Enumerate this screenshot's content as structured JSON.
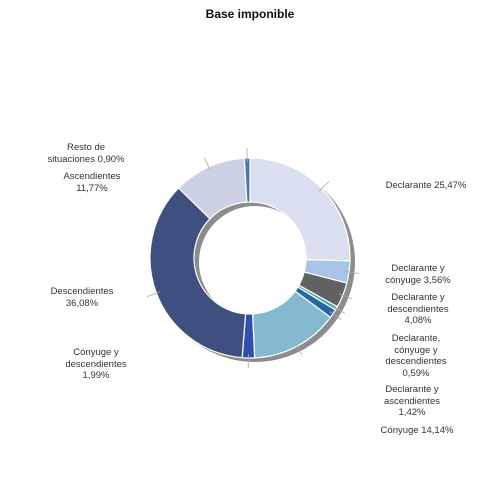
{
  "chart_data": {
    "type": "pie",
    "title": "Base imponible",
    "slices": [
      {
        "label": "Declarante",
        "value": 25.47,
        "display": "Declarante 25,47%",
        "color": "#dbe0f0"
      },
      {
        "label": "Declarante y cónyuge",
        "value": 3.56,
        "display": "Declarante y\ncónyuge 3,56%",
        "color": "#a9c3e6"
      },
      {
        "label": "Declarante y descendientes",
        "value": 4.08,
        "display": "Declarante y\ndescendientes\n4,08%",
        "color": "#606266"
      },
      {
        "label": "Declarante, cónyuge y descendientes",
        "value": 0.59,
        "display": "Declarante,\ncónyuge y\ndescendientes\n0,59%",
        "color": "#3fa89c"
      },
      {
        "label": "Declarante y ascendientes",
        "value": 1.42,
        "display": "Declarante y\nascendientes\n1,42%",
        "color": "#2466a8"
      },
      {
        "label": "Cónyuge",
        "value": 14.14,
        "display": "Cónyuge 14,14%",
        "color": "#85b9cf"
      },
      {
        "label": "Cónyuge y descendientes",
        "value": 1.99,
        "display": "Cónyuge y\ndescendientes\n1,99%",
        "color": "#2f4fb0"
      },
      {
        "label": "Descendientes",
        "value": 36.08,
        "display": "Descendientes\n36,08%",
        "color": "#3e4f80"
      },
      {
        "label": "Ascendientes",
        "value": 11.77,
        "display": "Ascendientes\n11,77%",
        "color": "#ccd0e4"
      },
      {
        "label": "Resto de situaciones",
        "value": 0.9,
        "display": "Resto de\nsituaciones 0,90%",
        "color": "#4e76b0"
      }
    ]
  }
}
